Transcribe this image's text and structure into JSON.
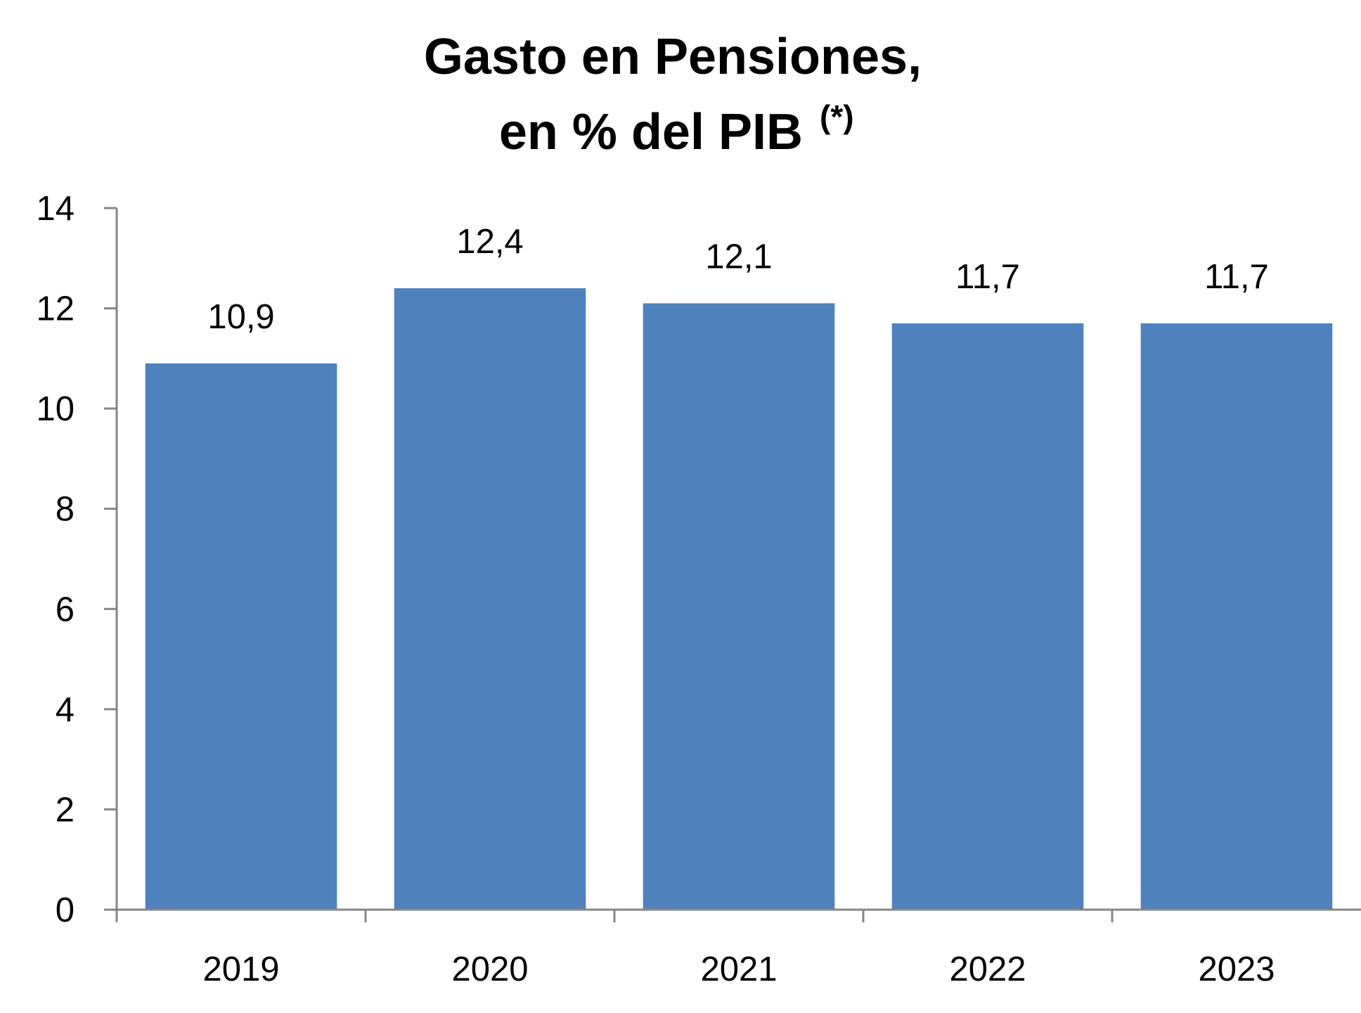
{
  "chart_data": {
    "type": "bar",
    "title_lines": [
      "Gasto en Pensiones,",
      "en % del PIB"
    ],
    "title_note": "(*)",
    "categories": [
      "2019",
      "2020",
      "2021",
      "2022",
      "2023"
    ],
    "values": [
      10.9,
      12.4,
      12.1,
      11.7,
      11.7
    ],
    "value_labels": [
      "10,9",
      "12,4",
      "12,1",
      "11,7",
      "11,7"
    ],
    "color": "#4f81bd",
    "ylim": [
      0,
      14
    ],
    "yticks": [
      0,
      2,
      4,
      6,
      8,
      10,
      12,
      14
    ],
    "grid": false
  }
}
